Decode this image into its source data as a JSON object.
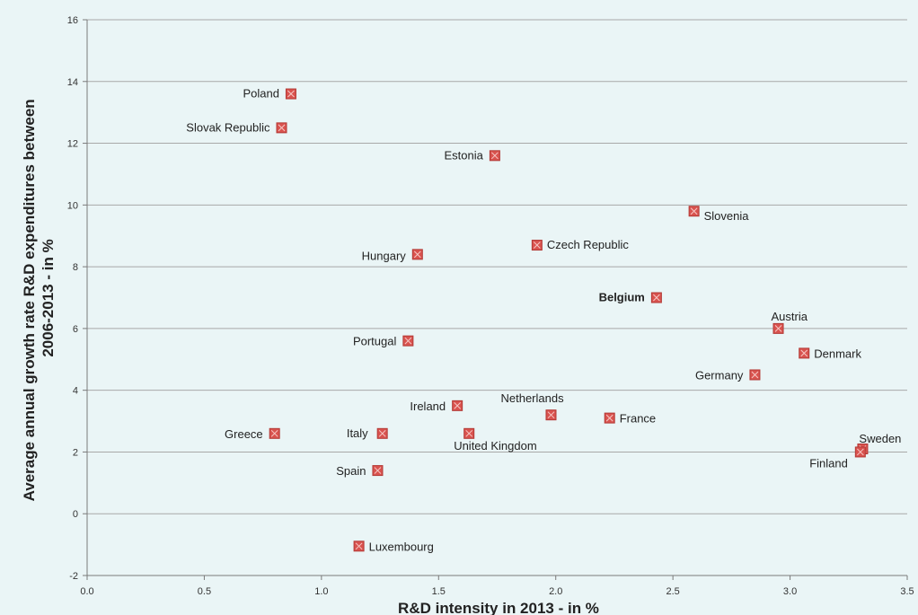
{
  "chart_data": {
    "type": "scatter",
    "title": "",
    "xlabel": "R&D intensity in 2013 - in %",
    "ylabel_lines": [
      "Average annual growth rate R&D expenditures between",
      "2006-2013 - in %"
    ],
    "xlim": [
      0,
      3.5
    ],
    "ylim": [
      -2,
      16
    ],
    "x_ticks": [
      "0.0",
      "0.5",
      "1.0",
      "1.5",
      "2.0",
      "2.5",
      "3.0",
      "3.5"
    ],
    "y_ticks": [
      "16",
      "14",
      "12",
      "10",
      "8",
      "6",
      "4",
      "2",
      "0",
      "-2"
    ],
    "grid": "horizontal",
    "legend": "none",
    "marker_color": "#d9534f",
    "points": [
      {
        "label": "Poland",
        "x": 0.87,
        "y": 13.6,
        "bold": false
      },
      {
        "label": "Slovak Republic",
        "x": 0.83,
        "y": 12.5,
        "bold": false
      },
      {
        "label": "Estonia",
        "x": 1.74,
        "y": 11.6,
        "bold": false
      },
      {
        "label": "Slovenia",
        "x": 2.59,
        "y": 9.8,
        "bold": false
      },
      {
        "label": "Czech Republic",
        "x": 1.92,
        "y": 8.7,
        "bold": false
      },
      {
        "label": "Hungary",
        "x": 1.41,
        "y": 8.4,
        "bold": false
      },
      {
        "label": "Belgium",
        "x": 2.43,
        "y": 7.0,
        "bold": true
      },
      {
        "label": "Austria",
        "x": 2.95,
        "y": 6.0,
        "bold": false
      },
      {
        "label": "Portugal",
        "x": 1.37,
        "y": 5.6,
        "bold": false
      },
      {
        "label": "Denmark",
        "x": 3.06,
        "y": 5.2,
        "bold": false
      },
      {
        "label": "Germany",
        "x": 2.85,
        "y": 4.5,
        "bold": false
      },
      {
        "label": "Ireland",
        "x": 1.58,
        "y": 3.5,
        "bold": false
      },
      {
        "label": "Netherlands",
        "x": 1.98,
        "y": 3.2,
        "bold": false
      },
      {
        "label": "France",
        "x": 2.23,
        "y": 3.1,
        "bold": false
      },
      {
        "label": "Greece",
        "x": 0.8,
        "y": 2.6,
        "bold": false
      },
      {
        "label": "Italy",
        "x": 1.26,
        "y": 2.6,
        "bold": false
      },
      {
        "label": "United Kingdom",
        "x": 1.63,
        "y": 2.6,
        "bold": false
      },
      {
        "label": "Sweden",
        "x": 3.31,
        "y": 2.1,
        "bold": false
      },
      {
        "label": "Finland",
        "x": 3.3,
        "y": 2.0,
        "bold": false
      },
      {
        "label": "Spain",
        "x": 1.24,
        "y": 1.4,
        "bold": false
      },
      {
        "label": "Luxembourg",
        "x": 1.16,
        "y": -1.05,
        "bold": false
      }
    ]
  }
}
